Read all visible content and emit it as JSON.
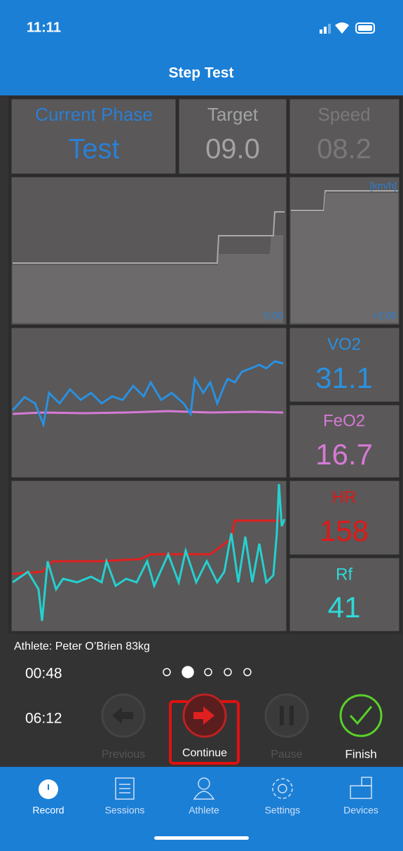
{
  "status_bar": {
    "time": "11:11"
  },
  "header": {
    "title": "Step Test"
  },
  "panels": {
    "phase": {
      "label": "Current Phase",
      "value": "Test"
    },
    "target": {
      "label": "Target",
      "value": "09.0"
    },
    "speed": {
      "label": "Speed",
      "value": "08.2"
    }
  },
  "speed_chart": {
    "unit": "[km/h]",
    "window_long": "5:00",
    "window_short": "+2:00"
  },
  "metrics": [
    {
      "label": "VO2",
      "value": "31.1"
    },
    {
      "label": "FeO2",
      "value": "16.7"
    },
    {
      "label": "HR",
      "value": "158"
    },
    {
      "label": "Rf",
      "value": "41"
    }
  ],
  "athlete": "Athlete: Peter O’Brien 83kg",
  "timers": {
    "stage": "00:48",
    "total": "06:12"
  },
  "controls": [
    {
      "label": "Previous"
    },
    {
      "label": "Continue"
    },
    {
      "label": "Pause"
    },
    {
      "label": "Finish"
    }
  ],
  "tabs": [
    {
      "label": "Record"
    },
    {
      "label": "Sessions"
    },
    {
      "label": "Athlete"
    },
    {
      "label": "Settings"
    },
    {
      "label": "Devices"
    }
  ]
}
